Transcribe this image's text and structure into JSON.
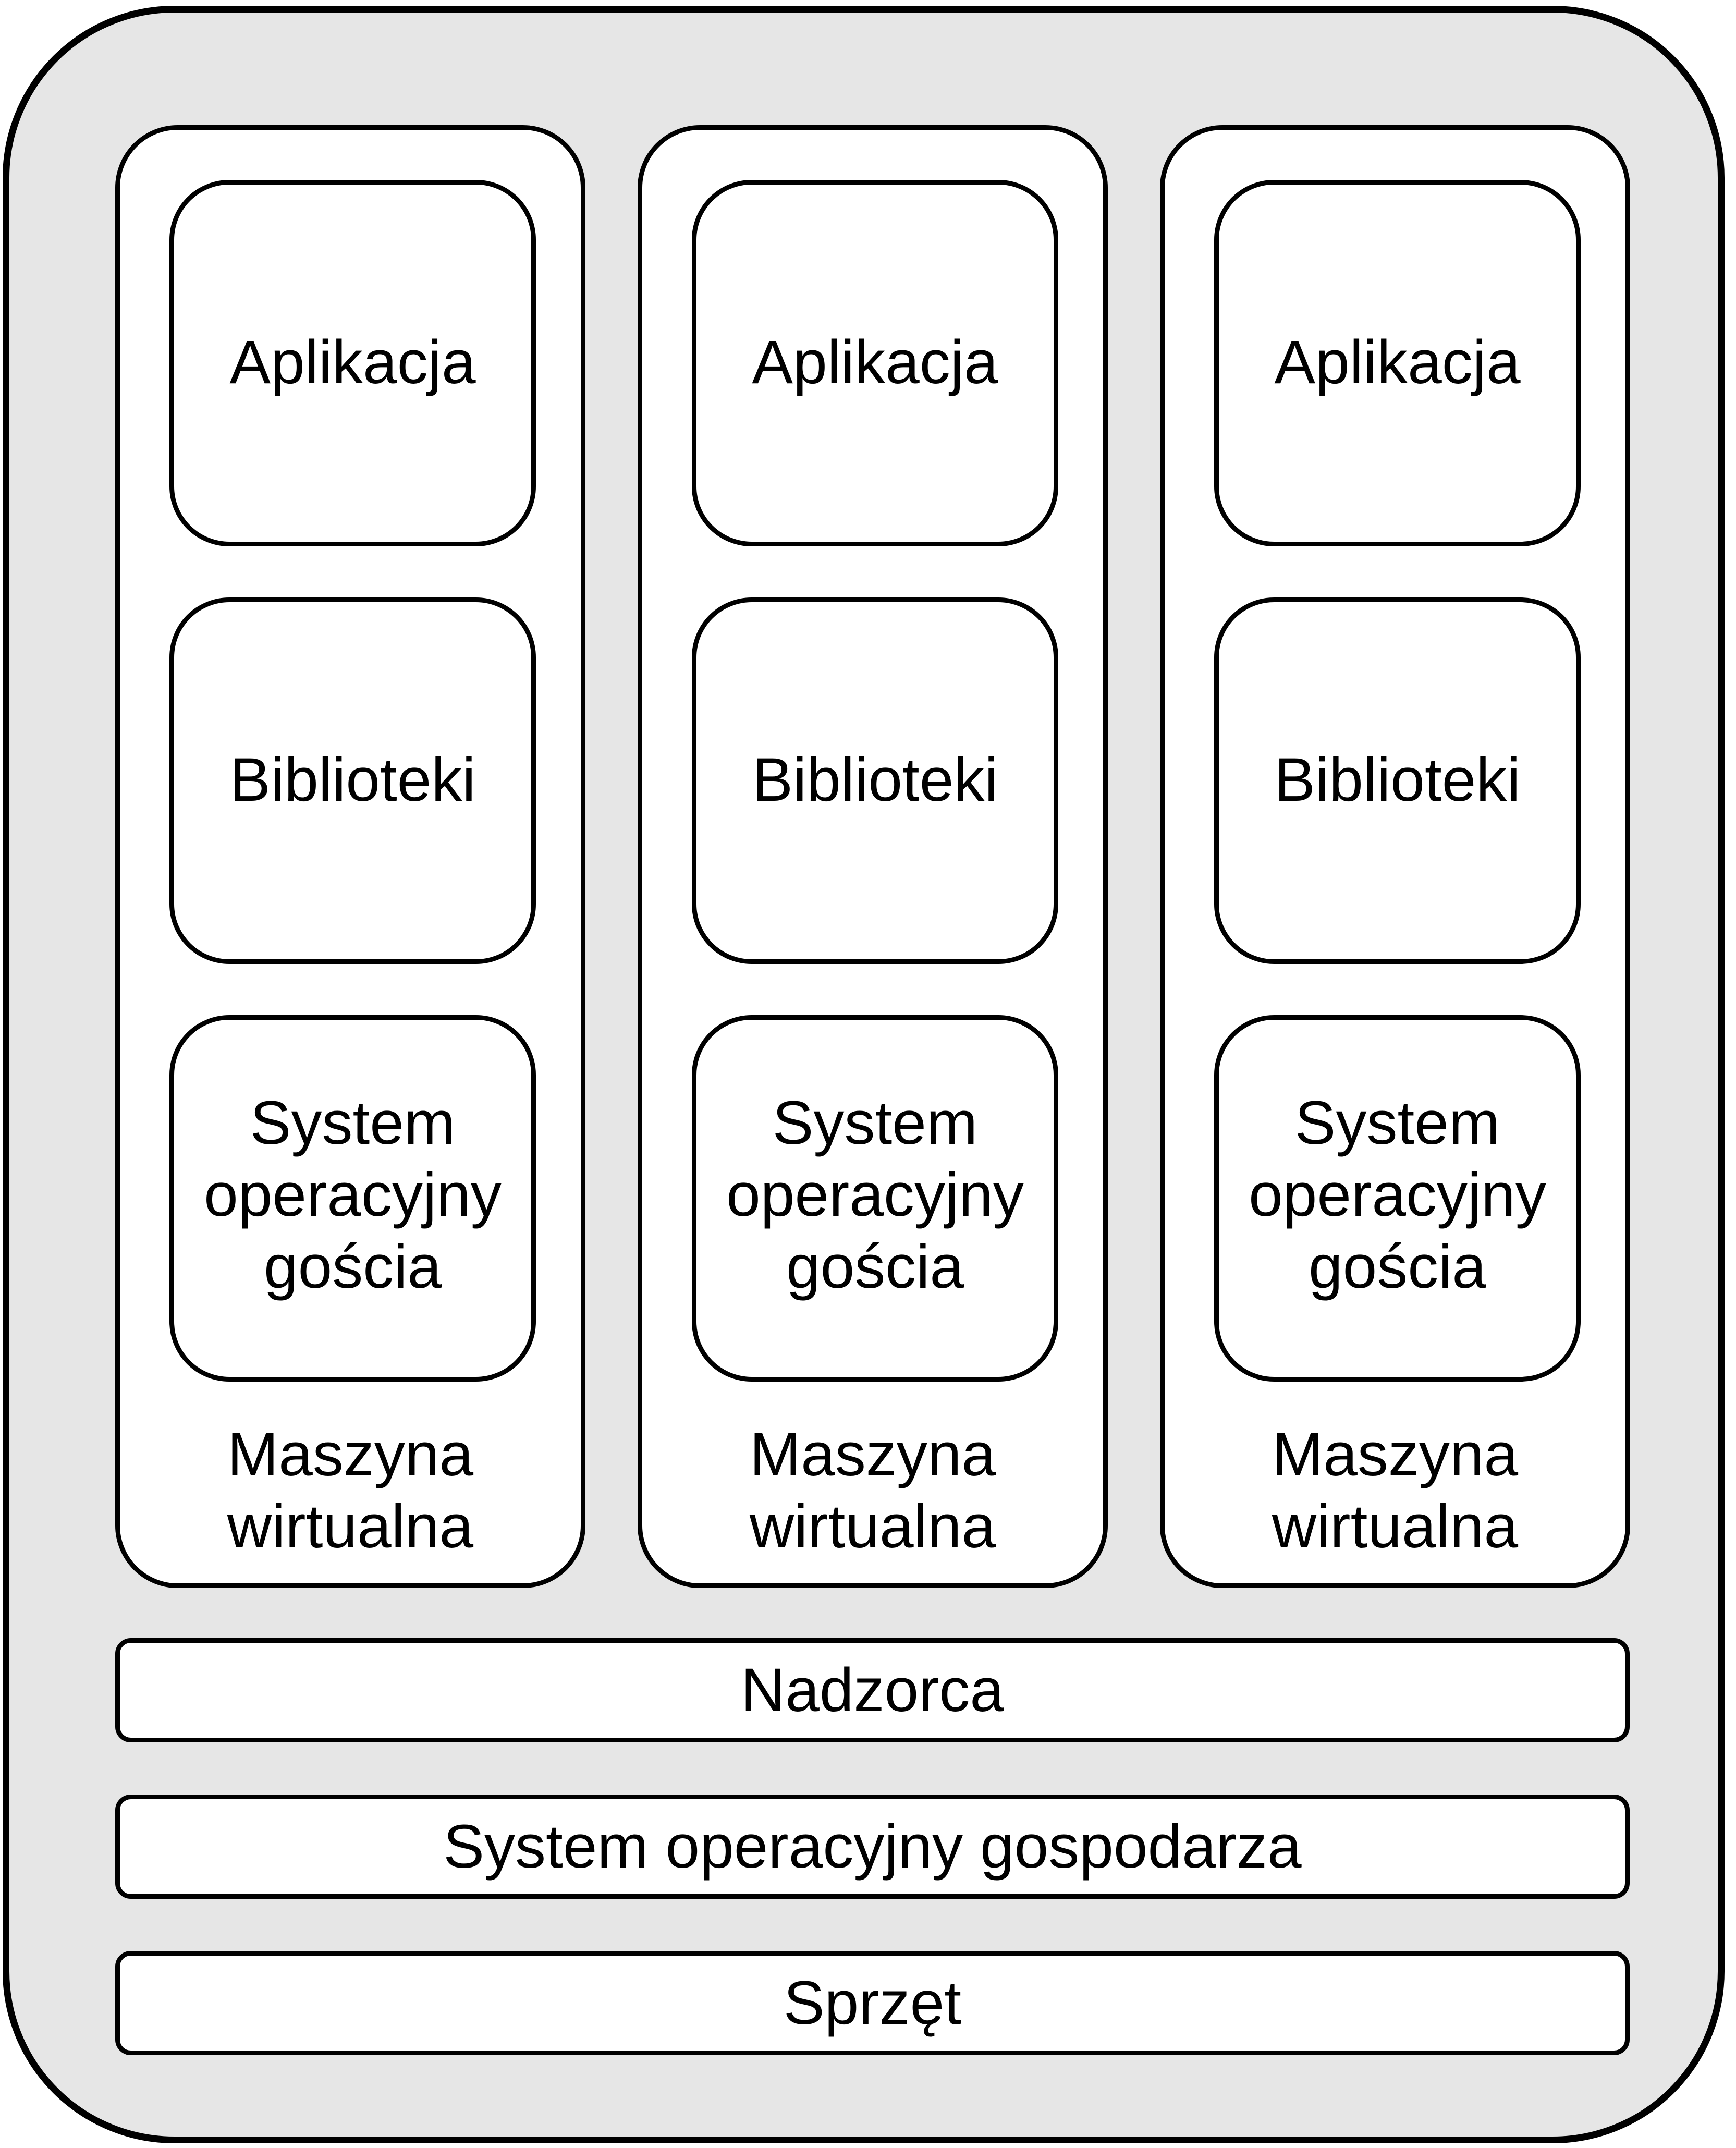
{
  "diagram": {
    "virtual_machines": [
      {
        "application": "Aplikacja",
        "libraries": "Biblioteki",
        "guest_os": "System\noperacyjny\ngościa",
        "label": "Maszyna\nwirtualna"
      },
      {
        "application": "Aplikacja",
        "libraries": "Biblioteki",
        "guest_os": "System\noperacyjny\ngościa",
        "label": "Maszyna\nwirtualna"
      },
      {
        "application": "Aplikacja",
        "libraries": "Biblioteki",
        "guest_os": "System\noperacyjny\ngościa",
        "label": "Maszyna\nwirtualna"
      }
    ],
    "hypervisor": "Nadzorca",
    "host_os": "System operacyjny gospodarza",
    "hardware": "Sprzęt"
  },
  "colors": {
    "background_fill": "#e6e6e6",
    "box_fill": "#ffffff",
    "stroke": "#000000"
  }
}
